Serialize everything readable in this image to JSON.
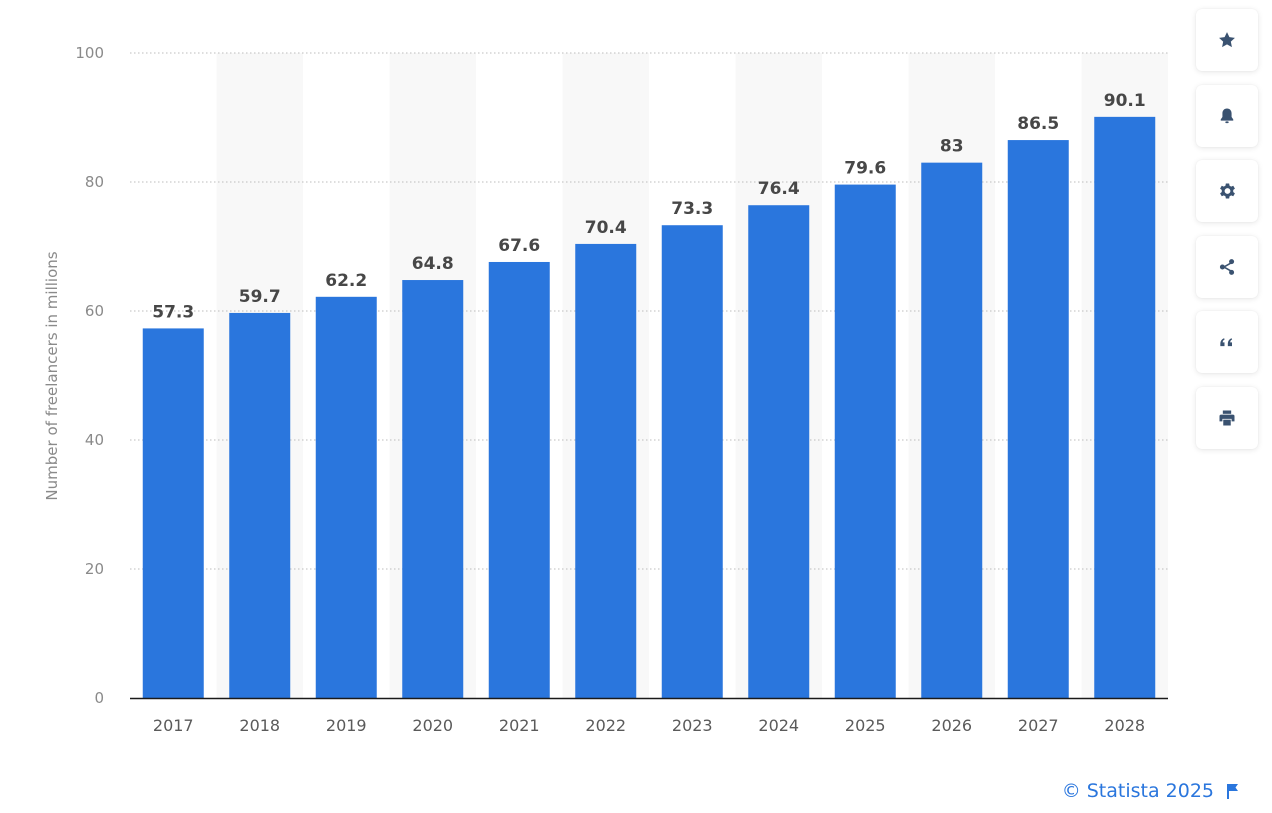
{
  "chart_data": {
    "type": "bar",
    "categories": [
      "2017",
      "2018",
      "2019",
      "2020",
      "2021",
      "2022",
      "2023",
      "2024",
      "2025",
      "2026",
      "2027",
      "2028"
    ],
    "values": [
      57.3,
      59.7,
      62.2,
      64.8,
      67.6,
      70.4,
      73.3,
      76.4,
      79.6,
      83,
      86.5,
      90.1
    ],
    "value_labels": [
      "57.3",
      "59.7",
      "62.2",
      "64.8",
      "67.6",
      "70.4",
      "73.3",
      "76.4",
      "79.6",
      "83",
      "86.5",
      "90.1"
    ],
    "title": "",
    "xlabel": "",
    "ylabel": "Number of freelancers in millions",
    "ylim": [
      0,
      100
    ],
    "yticks": [
      "0",
      "20",
      "40",
      "60",
      "80",
      "100"
    ],
    "grid": true,
    "legend": "none",
    "bar_color": "#2a76dd",
    "alt_band_color": "#f8f8f8"
  },
  "toolbar": {
    "buttons": [
      {
        "name": "favorite",
        "icon": "star-icon"
      },
      {
        "name": "notify",
        "icon": "bell-icon"
      },
      {
        "name": "settings",
        "icon": "gear-icon"
      },
      {
        "name": "share",
        "icon": "share-icon"
      },
      {
        "name": "cite",
        "icon": "quote-icon"
      },
      {
        "name": "print",
        "icon": "printer-icon"
      }
    ]
  },
  "footer": {
    "copyright": "© Statista 2025",
    "link_color": "#2a76dd"
  }
}
